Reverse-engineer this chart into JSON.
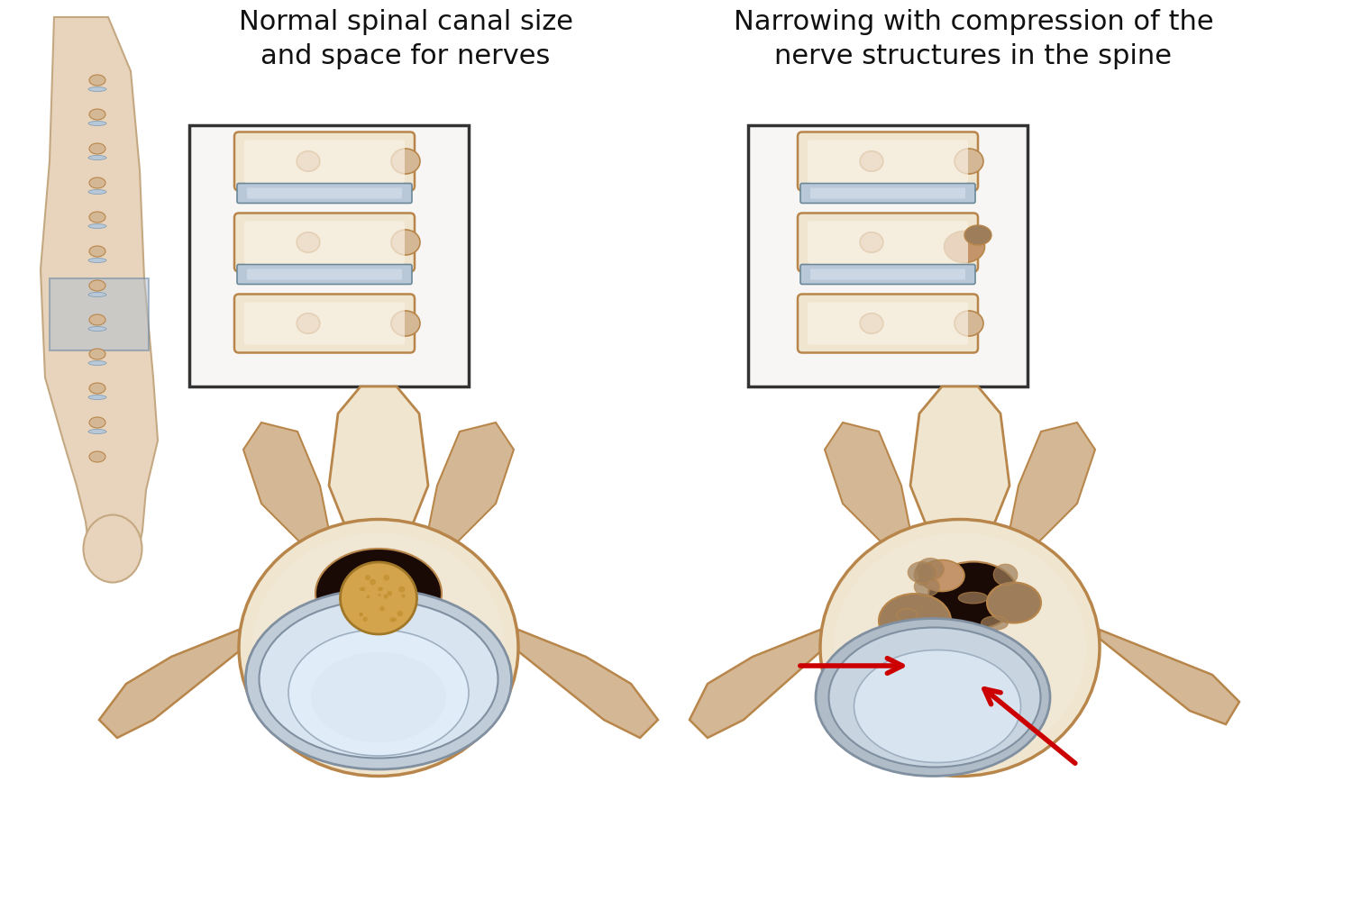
{
  "background_color": "#ffffff",
  "title1": "Normal spinal canal size\nand space for nerves",
  "title2": "Narrowing with compression of the\nnerve structures in the spine",
  "title_fontsize": 22,
  "bone_light": "#f0e6d0",
  "bone_mid": "#d4b896",
  "bone_dark": "#c4956a",
  "bone_outline": "#b8864a",
  "disc_color": "#b8c8d8",
  "disc_light": "#d0dce8",
  "disc_dark": "#8899aa",
  "nerve_color": "#e8b860",
  "nerve_dark": "#c09040",
  "spinal_canal_color": "#c8d4e0",
  "canal_inner": "#8899aa",
  "red_arrow": "#cc0000",
  "skin_color": "#e8d0b8",
  "skin_outline": "#c4a882",
  "stenosis_color": "#9e7e5a"
}
